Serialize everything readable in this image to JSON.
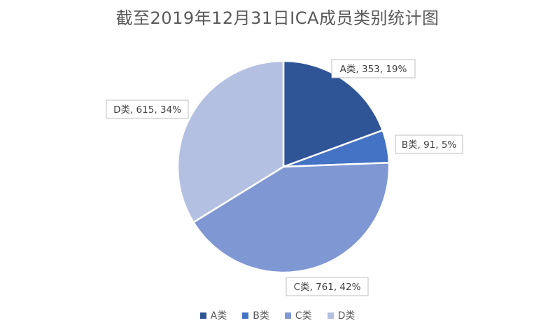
{
  "chart_data": {
    "type": "pie",
    "title": "截至2019年12月31日ICA成员类别统计图",
    "categories": [
      "A类",
      "B类",
      "C类",
      "D类"
    ],
    "values": [
      353,
      91,
      761,
      615
    ],
    "percentages": [
      "19%",
      "5%",
      "42%",
      "34%"
    ],
    "data_labels": [
      "A类, 353, 19%",
      "B类, 91, 5%",
      "C类, 761, 42%",
      "D类, 615, 34%"
    ],
    "colors": [
      "#2F5597",
      "#4472C4",
      "#7F97D3",
      "#B4C0E2"
    ],
    "legend_position": "bottom",
    "start_angle": "12 o'clock",
    "direction": "clockwise"
  }
}
